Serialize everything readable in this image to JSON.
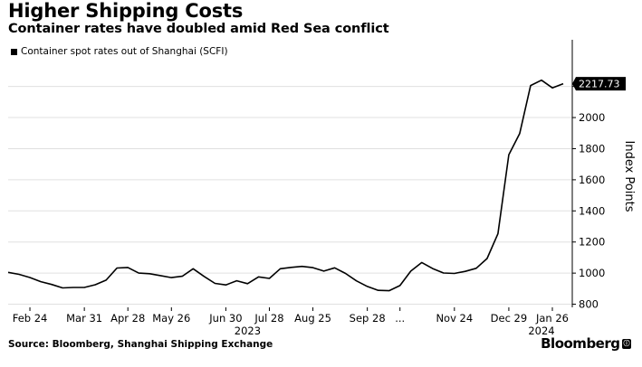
{
  "header": {
    "title": "Higher Shipping Costs",
    "subtitle": "Container rates have doubled amid Red Sea conflict"
  },
  "footer": {
    "source": "Source: Bloomberg, Shanghai Shipping Exchange",
    "brand": "Bloomberg",
    "brand_icon": "ⓘ"
  },
  "colors": {
    "line": "#000000",
    "grid": "#e0e0e0",
    "axis": "#000000",
    "background": "#ffffff"
  },
  "chart_data": {
    "type": "line",
    "title": "Higher Shipping Costs",
    "subtitle": "Container rates have doubled amid Red Sea conflict",
    "ylabel": "Index Points",
    "xlabel": "",
    "ylim": [
      780,
      2500
    ],
    "yticks": [
      800,
      1000,
      1200,
      1400,
      1600,
      1800,
      2000,
      2200
    ],
    "grid": true,
    "legend_position": "top-left",
    "last_value_label": "2217.73",
    "x_tick_labels": [
      "Feb 24",
      "Mar 31",
      "Apr 28",
      "May 26",
      "Jun 30",
      "Jul 28",
      "Aug 25",
      "Sep 28",
      "...",
      "Nov 24",
      "Dec 29",
      "Jan 26"
    ],
    "x_tick_index": [
      2,
      7,
      11,
      15,
      20,
      24,
      28,
      33,
      36,
      41,
      46,
      50
    ],
    "year_labels": [
      {
        "label": "2023",
        "index": 22
      },
      {
        "label": "2024",
        "index": 49
      }
    ],
    "series": [
      {
        "name": "Container spot rates out of Shanghai (SCFI)",
        "values": [
          1005,
          992,
          972,
          945,
          927,
          905,
          908,
          908,
          925,
          955,
          1033,
          1036,
          1000,
          996,
          984,
          971,
          980,
          1028,
          979,
          934,
          924,
          951,
          932,
          976,
          966,
          1028,
          1037,
          1043,
          1035,
          1013,
          1034,
          998,
          950,
          914,
          889,
          887,
          920,
          1013,
          1068,
          1029,
          1001,
          998,
          1011,
          1031,
          1094,
          1253,
          1760,
          1897,
          2206,
          2240,
          2191,
          2217.73
        ]
      }
    ]
  }
}
